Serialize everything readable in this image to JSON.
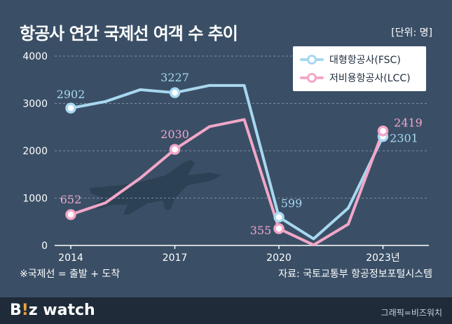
{
  "header": {
    "title": "항공사 연간 국제선 여객 수 추이",
    "unit": "[단위: 명]"
  },
  "footer": {
    "note": "※국제선 = 출발 + 도착",
    "source": "자료: 국토교통부 항공정보포털시스템",
    "brand_prefix": "B",
    "brand_accent": "!",
    "brand_suffix": "z watch",
    "credit": "그래픽=비즈워치"
  },
  "colors": {
    "background": "#3a4f66",
    "fsc": "#a8d8f0",
    "lcc": "#f2a7c8",
    "grid": "#7c8ea3"
  },
  "icons": {
    "plane": "airplane-silhouette"
  },
  "chart_data": {
    "type": "line",
    "title": "항공사 연간 국제선 여객 수 추이",
    "ylim": [
      0,
      4000
    ],
    "yticks": [
      "0",
      "1000",
      "2000",
      "3000",
      "4000"
    ],
    "xlim": [
      2014,
      2024
    ],
    "xticks": [
      {
        "x": 2014,
        "label": "2014"
      },
      {
        "x": 2017,
        "label": "2017"
      },
      {
        "x": 2020,
        "label": "2020"
      },
      {
        "x": 2023,
        "label": "2023년"
      }
    ],
    "grid": "horizontal dashed",
    "legend_position": "top-right",
    "series": [
      {
        "name": "대형항공사(FSC)",
        "color": "#a8d8f0",
        "points": [
          {
            "x": 2014,
            "y": 2902
          },
          {
            "x": 2015,
            "y": 3040
          },
          {
            "x": 2016,
            "y": 3290
          },
          {
            "x": 2017,
            "y": 3227
          },
          {
            "x": 2018,
            "y": 3380
          },
          {
            "x": 2019,
            "y": 3380
          },
          {
            "x": 2020,
            "y": 599
          },
          {
            "x": 2021,
            "y": 140
          },
          {
            "x": 2022,
            "y": 790
          },
          {
            "x": 2023,
            "y": 2301
          }
        ],
        "labeled": [
          {
            "x": 2014,
            "label": "2902"
          },
          {
            "x": 2017,
            "label": "3227"
          },
          {
            "x": 2020,
            "label": "599"
          },
          {
            "x": 2023,
            "label": "2301"
          }
        ]
      },
      {
        "name": "저비용항공사(LCC)",
        "color": "#f2a7c8",
        "points": [
          {
            "x": 2014,
            "y": 652
          },
          {
            "x": 2015,
            "y": 900
          },
          {
            "x": 2016,
            "y": 1420
          },
          {
            "x": 2017,
            "y": 2030
          },
          {
            "x": 2018,
            "y": 2510
          },
          {
            "x": 2019,
            "y": 2660
          },
          {
            "x": 2020,
            "y": 355
          },
          {
            "x": 2021,
            "y": 10
          },
          {
            "x": 2022,
            "y": 450
          },
          {
            "x": 2023,
            "y": 2419
          }
        ],
        "labeled": [
          {
            "x": 2014,
            "label": "652"
          },
          {
            "x": 2017,
            "label": "2030"
          },
          {
            "x": 2020,
            "label": "355"
          },
          {
            "x": 2023,
            "label": "2419"
          }
        ]
      }
    ]
  }
}
